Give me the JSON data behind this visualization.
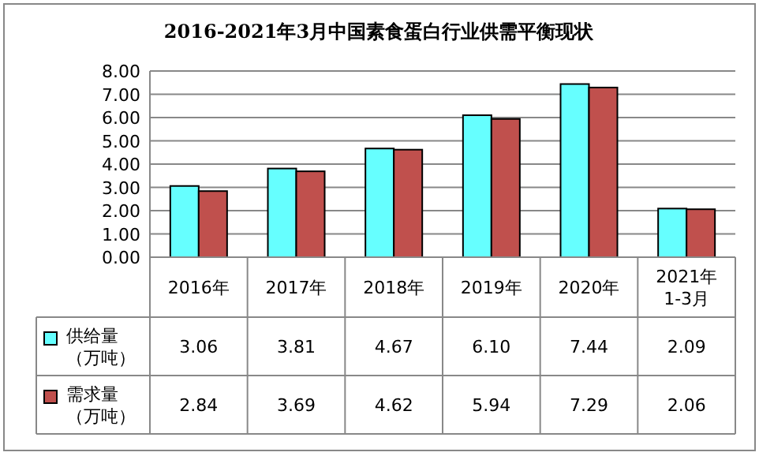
{
  "chart_data": {
    "type": "bar",
    "title": "2016-2021年3月中国素食蛋白行业供需平衡现状",
    "categories": [
      "2016年",
      "2017年",
      "2018年",
      "2019年",
      "2020年",
      "2021年1-3月"
    ],
    "series": [
      {
        "name": "供给量（万吨）",
        "color": "#66ffff",
        "values": [
          3.06,
          3.81,
          4.67,
          6.1,
          7.44,
          2.09
        ],
        "value_labels": [
          "3.06",
          "3.81",
          "4.67",
          "6.10",
          "7.44",
          "2.09"
        ]
      },
      {
        "name": "需求量（万吨）",
        "color": "#c0504d",
        "values": [
          2.84,
          3.69,
          4.62,
          5.94,
          7.29,
          2.06
        ],
        "value_labels": [
          "2.84",
          "3.69",
          "4.62",
          "5.94",
          "7.29",
          "2.06"
        ]
      }
    ],
    "ylim": [
      0,
      8
    ],
    "yticks": [
      {
        "value": 0,
        "label": "0.00"
      },
      {
        "value": 1,
        "label": "1.00"
      },
      {
        "value": 2,
        "label": "2.00"
      },
      {
        "value": 3,
        "label": "3.00"
      },
      {
        "value": 4,
        "label": "4.00"
      },
      {
        "value": 5,
        "label": "5.00"
      },
      {
        "value": 6,
        "label": "6.00"
      },
      {
        "value": 7,
        "label": "7.00"
      },
      {
        "value": 8,
        "label": "8.00"
      }
    ],
    "grid": "y",
    "legend": "bottom"
  }
}
